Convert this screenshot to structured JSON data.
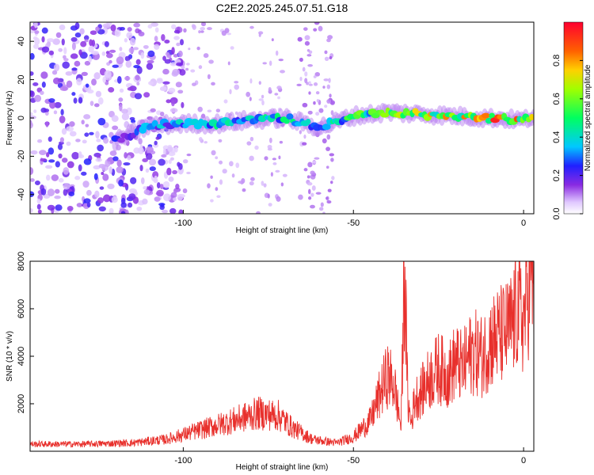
{
  "title": "C2E2.2025.245.07.51.G18",
  "chart_data": [
    {
      "type": "heatmap",
      "xlabel": "Height of straight line (km)",
      "ylabel": "Frequency (Hz)",
      "xlim": [
        -145,
        3
      ],
      "ylim": [
        -50,
        50
      ],
      "xticks": [
        -100,
        -50,
        0
      ],
      "yticks": [
        -40,
        -20,
        0,
        20,
        40
      ],
      "colorbar": {
        "label": "Normalized spectral amplitude",
        "range": [
          0,
          1
        ],
        "ticks": [
          0.0,
          0.2,
          0.4,
          0.6,
          0.8
        ],
        "tick_labels": [
          "0.0",
          "0.2",
          "0.4",
          "0.6",
          "0.8"
        ]
      },
      "ridge": {
        "x": [
          -120,
          -110,
          -100,
          -90,
          -80,
          -70,
          -60,
          -50,
          -40,
          -30,
          -20,
          -10,
          0,
          3
        ],
        "freq": [
          -12,
          -4,
          -3,
          -3,
          -1,
          0,
          -5,
          1,
          3,
          2,
          1,
          0,
          -1,
          1
        ],
        "amplitude": [
          0.25,
          0.35,
          0.4,
          0.45,
          0.45,
          0.5,
          0.4,
          0.55,
          0.6,
          0.7,
          0.8,
          0.9,
          0.8,
          0.85
        ]
      }
    },
    {
      "type": "line",
      "xlabel": "Height of straight line (km)",
      "ylabel": "SNR (10 * v/v)",
      "xlim": [
        -145,
        3
      ],
      "ylim": [
        0,
        8000
      ],
      "xticks": [
        -100,
        -50,
        0
      ],
      "yticks": [
        2000,
        4000,
        6000,
        8000
      ],
      "color": "#e8302c",
      "series": [
        {
          "name": "SNR",
          "x": [
            -145,
            -130,
            -115,
            -105,
            -95,
            -85,
            -78,
            -72,
            -68,
            -62,
            -55,
            -50,
            -45,
            -42,
            -40,
            -38,
            -36,
            -35,
            -34,
            -33,
            -32,
            -30,
            -28,
            -25,
            -22,
            -20,
            -18,
            -15,
            -12,
            -10,
            -8,
            -5,
            -3,
            -2,
            0,
            2,
            3
          ],
          "y": [
            300,
            300,
            350,
            500,
            900,
            1300,
            1600,
            1500,
            1000,
            500,
            350,
            600,
            1300,
            2500,
            3200,
            2800,
            1000,
            8000,
            2000,
            1200,
            2200,
            2500,
            3000,
            3500,
            3200,
            3800,
            3500,
            4200,
            4000,
            4600,
            4800,
            5000,
            5400,
            6000,
            5500,
            7500,
            6800
          ]
        }
      ]
    }
  ]
}
